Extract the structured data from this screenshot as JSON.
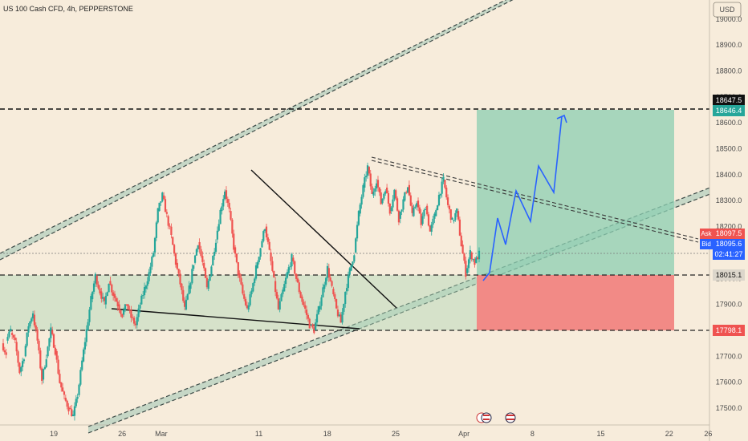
{
  "header": {
    "title": "US 100 Cash CFD, 4h, PEPPERSTONE"
  },
  "currency_button": "USD",
  "chart_data": {
    "type": "candlestick",
    "title": "US 100 Cash CFD, 4h, PEPPERSTONE",
    "ylim": [
      17450,
      19050
    ],
    "y_ticks": [
      "17500.0",
      "17600.0",
      "17700.0",
      "17800.0",
      "17900.0",
      "18000.0",
      "18100.0",
      "18200.0",
      "18300.0",
      "18400.0",
      "18500.0",
      "18600.0",
      "18700.0",
      "18800.0",
      "18900.0",
      "19000.0"
    ],
    "x_ticks": [
      {
        "label": "19",
        "date": "2024-02-19"
      },
      {
        "label": "26",
        "date": "2024-02-26"
      },
      {
        "label": "Mar",
        "date": "2024-03-01"
      },
      {
        "label": "11",
        "date": "2024-03-11"
      },
      {
        "label": "18",
        "date": "2024-03-18"
      },
      {
        "label": "25",
        "date": "2024-03-25"
      },
      {
        "label": "Apr",
        "date": "2024-04-01"
      },
      {
        "label": "8",
        "date": "2024-04-08"
      },
      {
        "label": "15",
        "date": "2024-04-15"
      },
      {
        "label": "22",
        "date": "2024-04-22"
      },
      {
        "label": "26",
        "date": "2024-04-26"
      }
    ],
    "ask": {
      "label": "Ask",
      "value": "18097.5"
    },
    "bid": {
      "label": "Bid",
      "value": "18095.6"
    },
    "countdown": "02:41:27",
    "levels": [
      {
        "label": "18647.5",
        "value": 18647.5
      },
      {
        "label": "18646.4",
        "value": 18646.4
      },
      {
        "label": "18015.1",
        "value": 18015.1
      },
      {
        "label": "17798.1",
        "value": 17798.1
      }
    ],
    "series": [
      {
        "kind": "path",
        "values": [
          [
            17750,
            17710
          ],
          [
            17760,
            17800
          ],
          [
            17790,
            17750
          ],
          [
            17755,
            17640
          ],
          [
            17640,
            17700
          ],
          [
            17700,
            17820
          ],
          [
            17815,
            17870
          ],
          [
            17860,
            17760
          ],
          [
            17760,
            17610
          ],
          [
            17610,
            17700
          ],
          [
            17700,
            17800
          ],
          [
            17800,
            17720
          ],
          [
            17720,
            17600
          ],
          [
            17600,
            17540
          ],
          [
            17540,
            17500
          ],
          [
            17500,
            17470
          ],
          [
            17470,
            17550
          ],
          [
            17550,
            17680
          ],
          [
            17680,
            17800
          ],
          [
            17800,
            17920
          ],
          [
            17920,
            18010
          ],
          [
            18010,
            17950
          ],
          [
            17950,
            17900
          ],
          [
            17900,
            17990
          ],
          [
            17990,
            17940
          ],
          [
            17940,
            17900
          ],
          [
            17900,
            17860
          ],
          [
            17860,
            17900
          ],
          [
            17900,
            17850
          ],
          [
            17850,
            17820
          ],
          [
            17820,
            17900
          ],
          [
            17900,
            17960
          ],
          [
            17960,
            18020
          ],
          [
            18020,
            18100
          ],
          [
            18100,
            18260
          ],
          [
            18260,
            18320
          ],
          [
            18320,
            18240
          ],
          [
            18240,
            18160
          ],
          [
            18160,
            18060
          ],
          [
            18060,
            17980
          ],
          [
            17980,
            17880
          ],
          [
            17880,
            17960
          ],
          [
            17960,
            18060
          ],
          [
            18060,
            18140
          ],
          [
            18140,
            18060
          ],
          [
            18060,
            17960
          ],
          [
            17960,
            18050
          ],
          [
            18050,
            18150
          ],
          [
            18150,
            18260
          ],
          [
            18260,
            18340
          ],
          [
            18340,
            18260
          ],
          [
            18260,
            18120
          ],
          [
            18120,
            18020
          ],
          [
            18020,
            17940
          ],
          [
            17940,
            17880
          ],
          [
            17880,
            17950
          ],
          [
            17950,
            18040
          ],
          [
            18040,
            18120
          ],
          [
            18120,
            18200
          ],
          [
            18200,
            18100
          ],
          [
            18100,
            17990
          ],
          [
            17990,
            17880
          ],
          [
            17880,
            17950
          ],
          [
            17950,
            18020
          ],
          [
            18020,
            18080
          ],
          [
            18080,
            18000
          ],
          [
            18000,
            17930
          ],
          [
            17930,
            17880
          ],
          [
            17880,
            17820
          ],
          [
            17820,
            17800
          ],
          [
            17800,
            17880
          ],
          [
            17880,
            17960
          ],
          [
            17960,
            18040
          ],
          [
            18040,
            17960
          ],
          [
            17960,
            17880
          ],
          [
            17880,
            17830
          ],
          [
            17830,
            17950
          ],
          [
            17950,
            18030
          ],
          [
            18030,
            18100
          ],
          [
            18100,
            18250
          ],
          [
            18250,
            18350
          ],
          [
            18350,
            18430
          ],
          [
            18430,
            18320
          ],
          [
            18320,
            18380
          ],
          [
            18380,
            18290
          ],
          [
            18290,
            18350
          ],
          [
            18350,
            18260
          ],
          [
            18260,
            18340
          ],
          [
            18340,
            18230
          ],
          [
            18230,
            18300
          ],
          [
            18300,
            18360
          ],
          [
            18360,
            18240
          ],
          [
            18240,
            18300
          ],
          [
            18300,
            18210
          ],
          [
            18210,
            18280
          ],
          [
            18280,
            18180
          ],
          [
            18180,
            18240
          ],
          [
            18240,
            18320
          ],
          [
            18320,
            18380
          ],
          [
            18380,
            18280
          ],
          [
            18280,
            18220
          ],
          [
            18220,
            18260
          ],
          [
            18260,
            18130
          ],
          [
            18130,
            18020
          ],
          [
            18020,
            18100
          ],
          [
            18100,
            18060
          ],
          [
            18060,
            18095
          ]
        ]
      }
    ],
    "notes": []
  }
}
